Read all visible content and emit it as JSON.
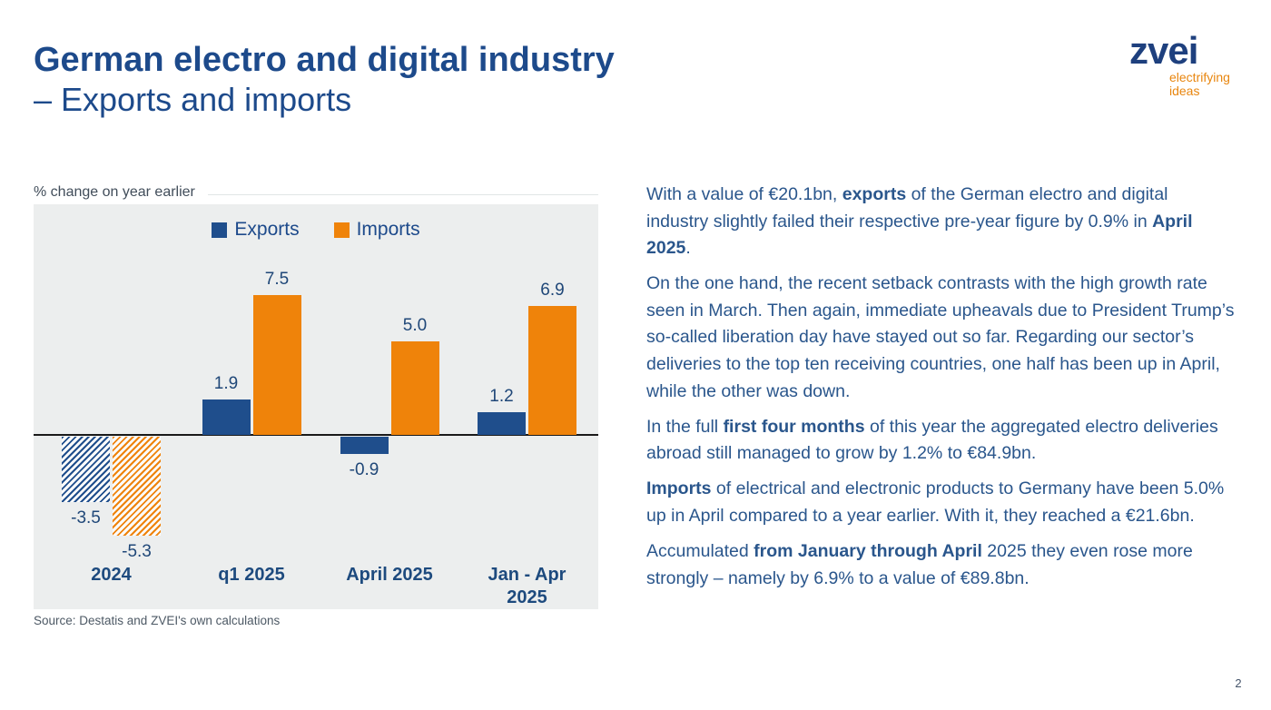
{
  "slide": {
    "title_line1": "German electro and digital industry",
    "title_line2": "– Exports and imports",
    "page_number": "2"
  },
  "logo": {
    "brand": "zvei",
    "tagline_line1": "electrifying",
    "tagline_line2": "ideas"
  },
  "chart_data": {
    "type": "bar",
    "subtitle": "% change on year earlier",
    "categories": [
      "2024",
      "q1 2025",
      "April 2025",
      "Jan - Apr 2025"
    ],
    "series": [
      {
        "name": "Exports",
        "color": "#1F4E8C",
        "values": [
          -3.5,
          1.9,
          -0.9,
          1.2
        ]
      },
      {
        "name": "Imports",
        "color": "#EF830A",
        "values": [
          -5.3,
          7.5,
          5.0,
          6.9
        ]
      }
    ],
    "hatched_categories": [
      0
    ],
    "ylim": [
      -6.5,
      9
    ],
    "grid": false,
    "legend_position": "top-center",
    "xlabel": "",
    "ylabel": "% change on year earlier",
    "source": "Source: Destatis and ZVEI's own calculations"
  },
  "body": {
    "paragraphs": [
      [
        {
          "t": "With a value of €20.1bn, "
        },
        {
          "t": "exports",
          "b": true
        },
        {
          "t": " of the German electro and digital industry slightly failed their respective pre-year figure by 0.9% in "
        },
        {
          "t": "April 2025",
          "b": true
        },
        {
          "t": "."
        }
      ],
      [
        {
          "t": "On the one hand, the recent setback contrasts with the high growth rate seen in March. Then again, immediate upheavals due to President Trump’s so-called liberation day have stayed out so far. Regarding our sector’s deliveries to the top ten receiving countries, one half has been up in April, while the other was down."
        }
      ],
      [
        {
          "t": "In the full "
        },
        {
          "t": "first four months",
          "b": true
        },
        {
          "t": " of this year the aggregated electro deliveries abroad still managed to grow by 1.2% to €84.9bn."
        }
      ],
      [
        {
          "t": "Imports",
          "b": true
        },
        {
          "t": " of electrical and electronic products to Germany have been 5.0% up in April compared to a year earlier. With it, they reached a €21.6bn."
        }
      ],
      [
        {
          "t": "Accumulated "
        },
        {
          "t": "from January through April",
          "b": true
        },
        {
          "t": " 2025 they even rose more strongly – namely by 6.9% to a value of €89.8bn."
        }
      ]
    ]
  },
  "colors": {
    "title_navy": "#1d4a8b",
    "body_navy": "#2a568c",
    "export_blue": "#1F4E8C",
    "import_orange": "#EF830A",
    "panel_gray": "#eceeee",
    "tagline_orange": "#e8860f"
  }
}
